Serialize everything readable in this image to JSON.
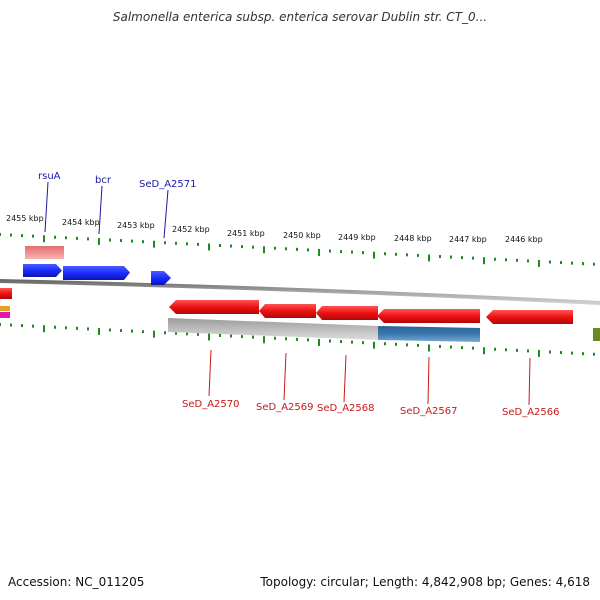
{
  "header": {
    "title": "Salmonella enterica subsp. enterica serovar Dublin str. CT_0..."
  },
  "footer": {
    "accession": "Accession: NC_011205",
    "stats": "Topology: circular; Length: 4,842,908 bp; Genes: 4,618"
  },
  "colors": {
    "forward_gene": "#1a2bff",
    "reverse_gene": "#ee1111",
    "rna_gene": "#f08a8a",
    "grey_feature": "#b8b8b8",
    "blue_feature": "#3a78b0",
    "tick": "#1f8a1f",
    "backbone": "#8a8a8a",
    "label_top": "#1a1aa6",
    "label_bottom": "#c81919"
  },
  "axis": {
    "tick_labels": [
      "2455 kbp",
      "2454 kbp",
      "2453 kbp",
      "2452 kbp",
      "2451 kbp",
      "2450 kbp",
      "2449 kbp",
      "2448 kbp",
      "2447 kbp",
      "2446 kbp"
    ]
  },
  "genes_top": [
    {
      "name": "rsuA",
      "strand": "forward"
    },
    {
      "name": "bcr",
      "strand": "forward"
    },
    {
      "name": "SeD_A2571",
      "strand": "forward"
    }
  ],
  "genes_bottom": [
    {
      "name": "SeD_A2570",
      "strand": "reverse"
    },
    {
      "name": "SeD_A2569",
      "strand": "reverse"
    },
    {
      "name": "SeD_A2568",
      "strand": "reverse"
    },
    {
      "name": "SeD_A2567",
      "strand": "reverse"
    },
    {
      "name": "SeD_A2566",
      "strand": "reverse"
    }
  ]
}
